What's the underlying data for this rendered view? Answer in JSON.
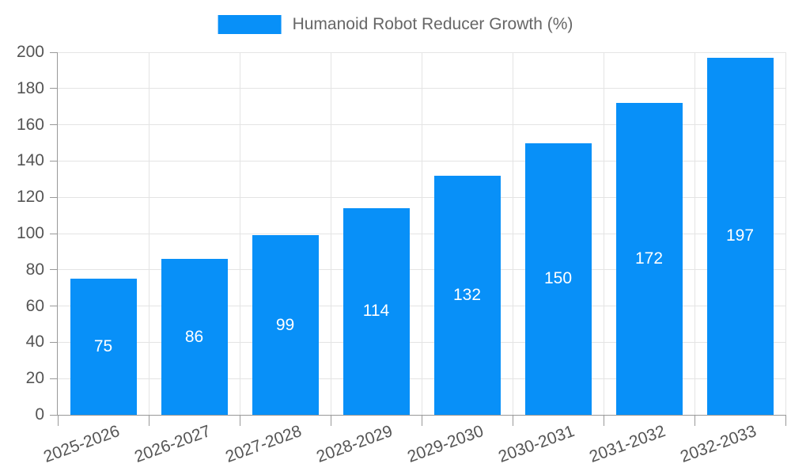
{
  "legend": {
    "label": "Humanoid Robot Reducer Growth (%)"
  },
  "colors": {
    "bar": "#0890F8",
    "axis": "#999999",
    "grid": "#E4E4E4",
    "tick_label": "#555555",
    "legend_text": "#666666",
    "value_label": "#FFFFFF",
    "background": "#FFFFFF"
  },
  "chart_data": {
    "type": "bar",
    "title": "Humanoid Robot Reducer Growth (%)",
    "series_name": "Humanoid Robot Reducer Growth (%)",
    "categories": [
      "2025-2026",
      "2026-2027",
      "2027-2028",
      "2028-2029",
      "2029-2030",
      "2030-2031",
      "2031-2032",
      "2032-2033"
    ],
    "values": [
      75,
      86,
      99,
      114,
      132,
      150,
      172,
      197
    ],
    "value_label_position": "inside-center",
    "xlabel": "",
    "ylabel": "",
    "ylim": [
      0,
      200
    ],
    "ytick_step": 20,
    "yticks": [
      0,
      20,
      40,
      60,
      80,
      100,
      120,
      140,
      160,
      180,
      200
    ],
    "grid": true,
    "legend_position": "top-center",
    "x_label_rotation_deg": -20
  }
}
